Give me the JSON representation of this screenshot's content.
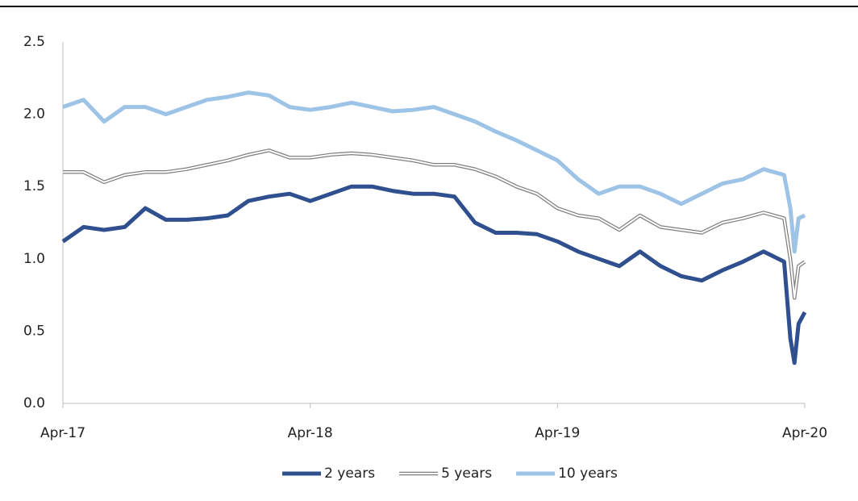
{
  "chart_data": {
    "type": "line",
    "x": [
      0,
      1,
      2,
      3,
      4,
      5,
      6,
      7,
      8,
      9,
      10,
      11,
      12,
      13,
      14,
      15,
      16,
      17,
      18,
      19,
      20,
      21,
      22,
      23,
      24,
      25,
      26,
      27,
      28,
      29,
      30,
      31,
      32,
      33,
      34,
      35,
      35.3,
      35.5,
      35.7,
      36
    ],
    "xlim": [
      0,
      36
    ],
    "xticks": [
      {
        "value": 0,
        "label": "Apr-17"
      },
      {
        "value": 12,
        "label": "Apr-18"
      },
      {
        "value": 24,
        "label": "Apr-19"
      },
      {
        "value": 36,
        "label": "Apr-20"
      }
    ],
    "ylim": [
      0,
      2.5
    ],
    "yticks": [
      {
        "value": 0,
        "label": "0.0"
      },
      0.5,
      {
        "value": 1,
        "label": "1.0"
      },
      1.5,
      {
        "value": 2,
        "label": "2.0"
      },
      2.5
    ],
    "grid": false,
    "series": [
      {
        "name": "2 years",
        "color": "#2f4f8f",
        "values": [
          1.12,
          1.22,
          1.2,
          1.22,
          1.35,
          1.27,
          1.27,
          1.28,
          1.3,
          1.4,
          1.43,
          1.45,
          1.4,
          1.45,
          1.5,
          1.5,
          1.47,
          1.45,
          1.45,
          1.43,
          1.25,
          1.18,
          1.18,
          1.17,
          1.12,
          1.05,
          1.0,
          0.95,
          1.05,
          0.95,
          0.88,
          0.85,
          0.92,
          0.98,
          1.05,
          0.98,
          0.45,
          0.28,
          0.55,
          0.63
        ]
      },
      {
        "name": "5 years",
        "color": "#ffffff",
        "outline": "#7f7f7f",
        "values": [
          1.6,
          1.6,
          1.53,
          1.58,
          1.6,
          1.6,
          1.62,
          1.65,
          1.68,
          1.72,
          1.75,
          1.7,
          1.7,
          1.72,
          1.73,
          1.72,
          1.7,
          1.68,
          1.65,
          1.65,
          1.62,
          1.57,
          1.5,
          1.45,
          1.35,
          1.3,
          1.28,
          1.2,
          1.3,
          1.22,
          1.2,
          1.18,
          1.25,
          1.28,
          1.32,
          1.28,
          1.0,
          0.73,
          0.95,
          0.98
        ]
      },
      {
        "name": "10 years",
        "color": "#9dc3e6",
        "values": [
          2.05,
          2.1,
          1.95,
          2.05,
          2.05,
          2.0,
          2.05,
          2.1,
          2.12,
          2.15,
          2.13,
          2.05,
          2.03,
          2.05,
          2.08,
          2.05,
          2.02,
          2.03,
          2.05,
          2.0,
          1.95,
          1.88,
          1.82,
          1.75,
          1.68,
          1.55,
          1.45,
          1.5,
          1.5,
          1.45,
          1.38,
          1.45,
          1.52,
          1.55,
          1.62,
          1.58,
          1.35,
          1.05,
          1.28,
          1.3
        ]
      }
    ]
  }
}
